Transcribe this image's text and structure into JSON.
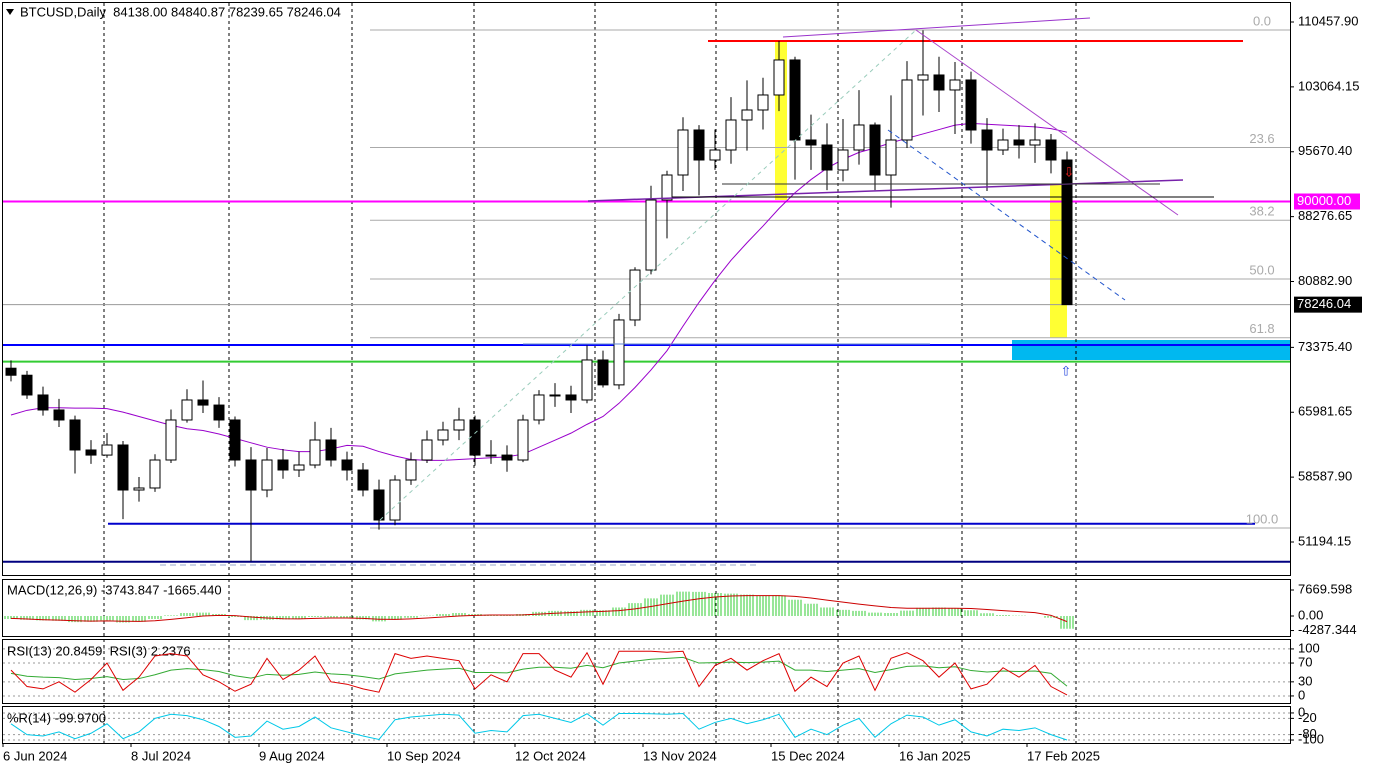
{
  "chart_data": [
    {
      "type": "candlestick",
      "title": "BTCUSD,Daily  84138.00 84840.87 78239.65 78246.04",
      "categories": [
        "6 Jun 2024",
        null,
        null,
        null,
        null,
        null,
        null,
        null,
        "8 Jul 2024",
        null,
        null,
        null,
        null,
        null,
        null,
        null,
        "9 Aug 2024",
        null,
        null,
        null,
        null,
        null,
        null,
        null,
        "10 Sep 2024",
        null,
        null,
        null,
        null,
        null,
        null,
        null,
        "12 Oct 2024",
        null,
        null,
        null,
        null,
        null,
        null,
        null,
        "13 Nov 2024",
        null,
        null,
        null,
        null,
        null,
        null,
        null,
        "15 Dec 2024",
        null,
        null,
        null,
        null,
        null,
        null,
        null,
        "16 Jan 2025",
        null,
        null,
        null,
        null,
        null,
        null,
        null,
        "17 Feb 2025",
        null,
        null
      ],
      "open": [
        71000,
        70200,
        67950,
        66240,
        65100,
        61680,
        61100,
        62250,
        57120,
        57350,
        60540,
        65100,
        67380,
        66800,
        65100,
        60540,
        57120,
        60540,
        59400,
        59970,
        62820,
        60540,
        59400,
        57120,
        53700,
        58260,
        60540,
        62820,
        63960,
        65100,
        61100,
        61100,
        60540,
        65100,
        67950,
        67950,
        67380,
        71940,
        69100,
        76500,
        82190,
        90170,
        93020,
        98150,
        94730,
        95870,
        99290,
        100430,
        102140,
        106130,
        97010,
        96440,
        93590,
        95870,
        98720,
        93020,
        97010,
        103850,
        104420,
        102710,
        103850,
        98150,
        95870,
        97010,
        96440,
        97010,
        94730
      ],
      "high": [
        71900,
        70700,
        68900,
        67500,
        65600,
        62800,
        63600,
        62700,
        58600,
        61200,
        66300,
        68600,
        69600,
        67700,
        65500,
        62000,
        61900,
        61800,
        61500,
        64900,
        64200,
        61500,
        60200,
        58300,
        58800,
        61400,
        63900,
        64900,
        66500,
        65600,
        62800,
        62200,
        65700,
        68500,
        69300,
        69000,
        73600,
        73000,
        77200,
        82500,
        91800,
        93500,
        99600,
        98700,
        98200,
        101900,
        103800,
        104100,
        108300,
        106500,
        99900,
        98900,
        99400,
        102700,
        99000,
        102100,
        106000,
        109500,
        106500,
        105900,
        104800,
        99500,
        98300,
        98700,
        98900,
        97700,
        95700
      ],
      "low": [
        69500,
        67500,
        65600,
        64300,
        59000,
        60100,
        60800,
        53800,
        55800,
        56900,
        60200,
        64800,
        65900,
        64200,
        59800,
        49000,
        56300,
        58400,
        58600,
        59600,
        59800,
        58200,
        56400,
        52600,
        53100,
        57700,
        60200,
        62200,
        62800,
        59900,
        60100,
        59200,
        60300,
        64600,
        66600,
        65900,
        67000,
        68800,
        68600,
        75800,
        81700,
        85800,
        91200,
        90700,
        93600,
        94300,
        95800,
        98200,
        100300,
        92500,
        93600,
        91300,
        92300,
        94200,
        91300,
        89300,
        96100,
        99800,
        100200,
        97700,
        96600,
        91200,
        95300,
        94900,
        94400,
        93200,
        78240
      ],
      "close": [
        70200,
        67950,
        66240,
        65100,
        61680,
        61100,
        62250,
        57120,
        57350,
        60540,
        65100,
        67380,
        66800,
        65100,
        60540,
        57120,
        60540,
        59400,
        59970,
        62820,
        60540,
        59400,
        57120,
        53700,
        58260,
        60540,
        62820,
        63960,
        65100,
        61100,
        61100,
        60540,
        65100,
        67950,
        67950,
        67380,
        71940,
        69100,
        76500,
        82190,
        90170,
        93020,
        98150,
        94730,
        95870,
        99290,
        100430,
        102140,
        106130,
        97010,
        96440,
        93590,
        95870,
        98720,
        93020,
        97010,
        103850,
        104420,
        102710,
        103850,
        98150,
        95870,
        97010,
        96440,
        97010,
        94730,
        78246.04
      ],
      "up_color": "#ffffff",
      "down_color": "#000000",
      "wick_color": "#000000",
      "ma": {
        "color": "#9900cc",
        "values": [
          65670,
          66200,
          66500,
          66500,
          66450,
          66450,
          66400,
          66000,
          65500,
          65000,
          64500,
          64100,
          63900,
          63500,
          63000,
          62500,
          62000,
          61700,
          61500,
          61500,
          61800,
          62200,
          62100,
          61500,
          61000,
          60600,
          60500,
          60500,
          60600,
          60700,
          60800,
          60900,
          61200,
          62000,
          62800,
          63600,
          64600,
          65500,
          67000,
          68800,
          70800,
          73000,
          75800,
          78500,
          81000,
          83300,
          85300,
          87200,
          89200,
          91000,
          92500,
          93800,
          94800,
          95600,
          96100,
          96700,
          97200,
          97700,
          98200,
          98700,
          98900,
          98800,
          98700,
          98600,
          98500,
          98300,
          97900
        ]
      },
      "ylim": [
        47433,
        112623
      ],
      "yticks": [
        {
          "value": 110457.9,
          "label": "110457.90"
        },
        103064.15,
        {
          "value": 95670.4,
          "label": "95670.40"
        },
        88276.65,
        {
          "value": 80882.9,
          "label": "80882.90"
        },
        {
          "value": 73375.4,
          "label": "73375.40"
        },
        65981.65,
        {
          "value": 58587.9,
          "label": "58587.90"
        },
        51194.15
      ],
      "last_price": 78246.04,
      "hlines": [
        {
          "value": 108293,
          "color": "#ff0000"
        },
        {
          "value": 90000,
          "label": "90000.00",
          "color": "#ff00ff"
        },
        {
          "value": 73650,
          "color": "#0000ff"
        },
        {
          "value": 71745,
          "color": "#33cc33"
        },
        {
          "value": 53272,
          "color": "#0000cc"
        },
        {
          "value": 48941,
          "color": "#000080"
        }
      ],
      "fib": {
        "high": 109546,
        "low": 52789,
        "color": "#aaaaaa",
        "levels": [
          {
            "value": 0,
            "label": "0.0"
          },
          23.6,
          38.2,
          {
            "value": 50,
            "label": "50.0"
          },
          61.8,
          {
            "value": 100,
            "label": "100.0"
          }
        ]
      }
    },
    {
      "type": "macd",
      "title": "MACD(12,26,9) -3743.847 -1665.440",
      "ylim": [
        -5900,
        10620
      ],
      "yticks": [
        7669.598,
        {
          "value": 0,
          "label": "0.00"
        },
        -4287.344
      ],
      "histogram": {
        "color": "#33cc33",
        "values": [
          -900,
          -1100,
          -1300,
          -1400,
          -1800,
          -1700,
          -1300,
          -1900,
          -1700,
          -900,
          200,
          900,
          1000,
          600,
          -300,
          -1200,
          -1100,
          -1000,
          -900,
          -300,
          -400,
          -600,
          -1000,
          -1600,
          -1100,
          -500,
          100,
          600,
          900,
          600,
          400,
          200,
          600,
          1200,
          1500,
          1400,
          1800,
          1700,
          2500,
          3800,
          5200,
          6300,
          7200,
          7100,
          6800,
          6600,
          6300,
          6000,
          6100,
          4800,
          3600,
          2500,
          1800,
          1500,
          1000,
          900,
          1600,
          2400,
          2500,
          2300,
          1700,
          800,
          300,
          100,
          0,
          -500,
          -3743.847
        ]
      },
      "signal": {
        "color": "#cc0000",
        "values": [
          -700,
          -900,
          -1100,
          -1200,
          -1400,
          -1500,
          -1450,
          -1550,
          -1600,
          -1400,
          -1000,
          -500,
          0,
          200,
          100,
          -300,
          -600,
          -800,
          -850,
          -700,
          -600,
          -600,
          -700,
          -950,
          -1000,
          -850,
          -600,
          -300,
          0,
          200,
          300,
          300,
          350,
          550,
          800,
          1000,
          1200,
          1350,
          1600,
          2100,
          2800,
          3600,
          4400,
          5100,
          5600,
          5900,
          6000,
          6000,
          6000,
          5800,
          5300,
          4700,
          4100,
          3500,
          3000,
          2500,
          2300,
          2300,
          2300,
          2300,
          2200,
          1900,
          1600,
          1300,
          1000,
          200,
          -1665.44
        ]
      }
    },
    {
      "type": "rsi",
      "title": "RSI(13) 20.8459  RSI(3) 2.2376",
      "ylim": [
        -15,
        119
      ],
      "yticks": [
        100,
        70,
        30,
        0
      ],
      "series": [
        {
          "color": "#33aa33",
          "values": [
            48,
            42,
            40,
            39,
            35,
            37,
            41,
            35,
            37,
            45,
            55,
            58,
            56,
            52,
            43,
            38,
            46,
            44,
            46,
            51,
            47,
            45,
            41,
            36,
            47,
            51,
            55,
            57,
            59,
            50,
            50,
            49,
            57,
            61,
            61,
            59,
            65,
            60,
            70,
            74,
            78,
            80,
            82,
            70,
            71,
            72,
            71,
            72,
            74,
            55,
            55,
            52,
            55,
            58,
            50,
            56,
            63,
            64,
            60,
            62,
            54,
            51,
            53,
            52,
            53,
            48,
            20.8459
          ]
        },
        {
          "color": "#dd0000",
          "values": [
            55,
            20,
            15,
            30,
            8,
            35,
            70,
            12,
            40,
            85,
            90,
            85,
            45,
            30,
            10,
            25,
            80,
            35,
            55,
            85,
            30,
            25,
            15,
            8,
            90,
            80,
            85,
            80,
            75,
            15,
            45,
            30,
            90,
            90,
            55,
            40,
            92,
            25,
            95,
            95,
            95,
            93,
            95,
            20,
            65,
            80,
            55,
            75,
            90,
            10,
            40,
            20,
            70,
            85,
            12,
            80,
            92,
            75,
            40,
            70,
            15,
            25,
            60,
            40,
            65,
            20,
            2.2376
          ]
        }
      ]
    },
    {
      "type": "wpr",
      "title": "%R(14) -99.9700",
      "ylim": [
        -111,
        22
      ],
      "yticks": [
        0,
        -20,
        -80,
        -100
      ],
      "color": "#00c8e8",
      "values": [
        -40,
        -80,
        -85,
        -70,
        -95,
        -75,
        -40,
        -95,
        -70,
        -20,
        -5,
        -10,
        -25,
        -50,
        -90,
        -85,
        -30,
        -60,
        -50,
        -15,
        -55,
        -70,
        -85,
        -98,
        -25,
        -15,
        -10,
        -5,
        -8,
        -75,
        -65,
        -70,
        -10,
        -5,
        -20,
        -35,
        -3,
        -45,
        -2,
        -2,
        -3,
        -5,
        -2,
        -60,
        -35,
        -20,
        -40,
        -25,
        -5,
        -90,
        -60,
        -80,
        -45,
        -20,
        -90,
        -40,
        -8,
        -15,
        -45,
        -25,
        -70,
        -85,
        -60,
        -65,
        -55,
        -80,
        -99.97
      ]
    }
  ]
}
